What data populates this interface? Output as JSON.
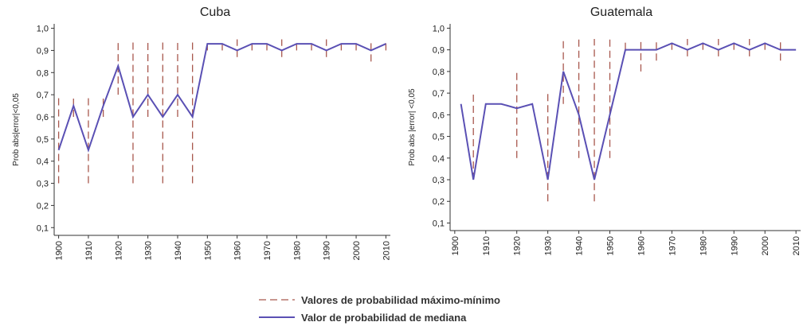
{
  "chart_data": [
    {
      "type": "line",
      "title": "Cuba",
      "y_label": "Prob abs|error|<0,05",
      "x": [
        1900,
        1905,
        1910,
        1915,
        1920,
        1925,
        1930,
        1935,
        1940,
        1945,
        1950,
        1955,
        1960,
        1965,
        1970,
        1975,
        1980,
        1985,
        1990,
        1995,
        2000,
        2005,
        2010
      ],
      "series": [
        {
          "color": "#5a50b4",
          "values": [
            0.45,
            0.65,
            0.45,
            0.65,
            0.83,
            0.6,
            0.7,
            0.6,
            0.7,
            0.6,
            0.93,
            0.93,
            0.9,
            0.93,
            0.93,
            0.9,
            0.93,
            0.93,
            0.9,
            0.93,
            0.93,
            0.9,
            0.93
          ]
        }
      ],
      "range_color": "#a8584e",
      "min": [
        0.3,
        0.6,
        0.3,
        0.6,
        0.7,
        0.3,
        0.6,
        0.3,
        0.6,
        0.3,
        0.9,
        0.9,
        0.87,
        0.9,
        0.9,
        0.87,
        0.9,
        0.9,
        0.87,
        0.9,
        0.9,
        0.85,
        0.9
      ],
      "max": [
        0.7,
        0.7,
        0.7,
        0.7,
        0.95,
        0.95,
        0.95,
        0.95,
        0.95,
        0.95,
        0.95,
        0.95,
        0.95,
        0.95,
        0.95,
        0.95,
        0.95,
        0.95,
        0.95,
        0.95,
        0.95,
        0.95,
        0.95
      ],
      "xlim": [
        1898.5,
        2011.5
      ],
      "xticks": [
        1900,
        1910,
        1920,
        1930,
        1940,
        1950,
        1960,
        1970,
        1980,
        1990,
        2000,
        2010
      ],
      "ylim": [
        0.065,
        1.02
      ],
      "yticks": [
        {
          "value": 0.1,
          "label": "0,1"
        },
        {
          "value": 0.2,
          "label": "0,2"
        },
        {
          "value": 0.3,
          "label": "0,3"
        },
        {
          "value": 0.4,
          "label": "0,4"
        },
        {
          "value": 0.5,
          "label": "0,5"
        },
        {
          "value": 0.6,
          "label": "0,6"
        },
        {
          "value": 0.7,
          "label": "0,7"
        },
        {
          "value": 0.8,
          "label": "0,8"
        },
        {
          "value": 0.9,
          "label": "0,9"
        },
        {
          "value": 1.0,
          "label": "1,0"
        }
      ]
    },
    {
      "type": "line",
      "title": "Guatemala",
      "y_label": "Prob abs |error| <0,05",
      "x": [
        1902,
        1906,
        1910,
        1915,
        1920,
        1925,
        1930,
        1935,
        1940,
        1945,
        1950,
        1955,
        1960,
        1965,
        1970,
        1975,
        1980,
        1985,
        1990,
        1995,
        2000,
        2005,
        2010
      ],
      "series": [
        {
          "color": "#5a50b4",
          "values": [
            0.65,
            0.3,
            0.65,
            0.65,
            0.63,
            0.65,
            0.3,
            0.8,
            0.6,
            0.3,
            0.6,
            0.9,
            0.9,
            0.9,
            0.93,
            0.9,
            0.93,
            0.9,
            0.93,
            0.9,
            0.93,
            0.9,
            0.9
          ]
        }
      ],
      "range_color": "#a8584e",
      "min": [
        null,
        0.3,
        null,
        null,
        0.4,
        null,
        0.2,
        0.65,
        0.4,
        0.2,
        0.4,
        0.9,
        0.8,
        0.85,
        0.9,
        0.87,
        0.9,
        0.87,
        0.9,
        0.87,
        0.9,
        0.85,
        null
      ],
      "max": [
        null,
        0.7,
        null,
        null,
        0.8,
        null,
        0.7,
        0.95,
        0.95,
        0.95,
        0.95,
        0.95,
        0.95,
        0.95,
        0.95,
        0.95,
        0.95,
        0.95,
        0.95,
        0.95,
        0.95,
        0.95,
        null
      ],
      "xlim": [
        1898.5,
        2011.5
      ],
      "xticks": [
        1900,
        1910,
        1920,
        1930,
        1940,
        1950,
        1960,
        1970,
        1980,
        1990,
        2000,
        2010
      ],
      "ylim": [
        0.065,
        1.02
      ],
      "yticks": [
        {
          "value": 0.1,
          "label": "0,1"
        },
        {
          "value": 0.2,
          "label": "0,2"
        },
        {
          "value": 0.3,
          "label": "0,3"
        },
        {
          "value": 0.4,
          "label": "0,4"
        },
        {
          "value": 0.5,
          "label": "0,5"
        },
        {
          "value": 0.6,
          "label": "0,6"
        },
        {
          "value": 0.7,
          "label": "0,7"
        },
        {
          "value": 0.8,
          "label": "0,8"
        },
        {
          "value": 0.9,
          "label": "0,9"
        },
        {
          "value": 1.0,
          "label": "1,0"
        }
      ]
    }
  ],
  "legend": [
    {
      "name": "Valores de probabilidad máximo-mínimo",
      "color": "#a8584e",
      "dash": true
    },
    {
      "name": "Valor de probabilidad de mediana",
      "color": "#5a50b4",
      "dash": false
    }
  ]
}
